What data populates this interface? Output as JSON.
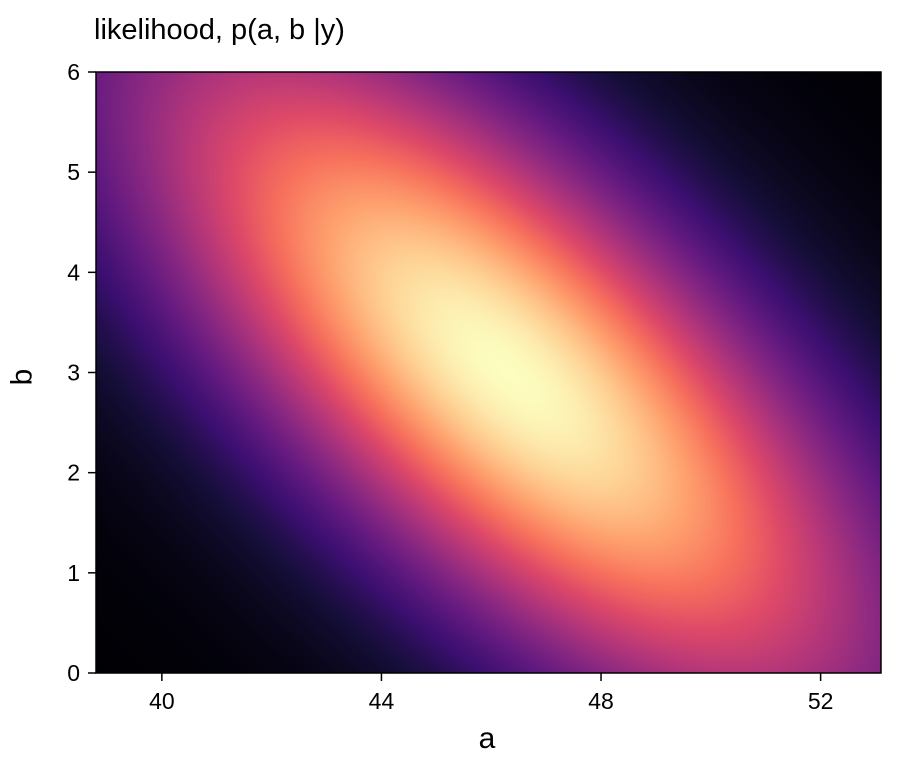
{
  "chart_data": {
    "type": "heatmap",
    "title": "likelihood, p(a, b |y)",
    "xlabel": "a",
    "ylabel": "b",
    "xlim": [
      38.8,
      53.1
    ],
    "ylim": [
      0,
      6
    ],
    "xticks": [
      40,
      44,
      48,
      52
    ],
    "yticks": [
      0,
      1,
      2,
      3,
      4,
      5,
      6
    ],
    "colormap": "magma",
    "peak": {
      "a": 46.3,
      "b": 3.0
    },
    "distribution": {
      "shape": "bivariate-gaussian",
      "sigma_a": 3.2,
      "sigma_b": 1.65,
      "correlation": -0.72
    },
    "grid": false
  },
  "colors": {
    "axis": "#000000",
    "background": "#ffffff"
  }
}
